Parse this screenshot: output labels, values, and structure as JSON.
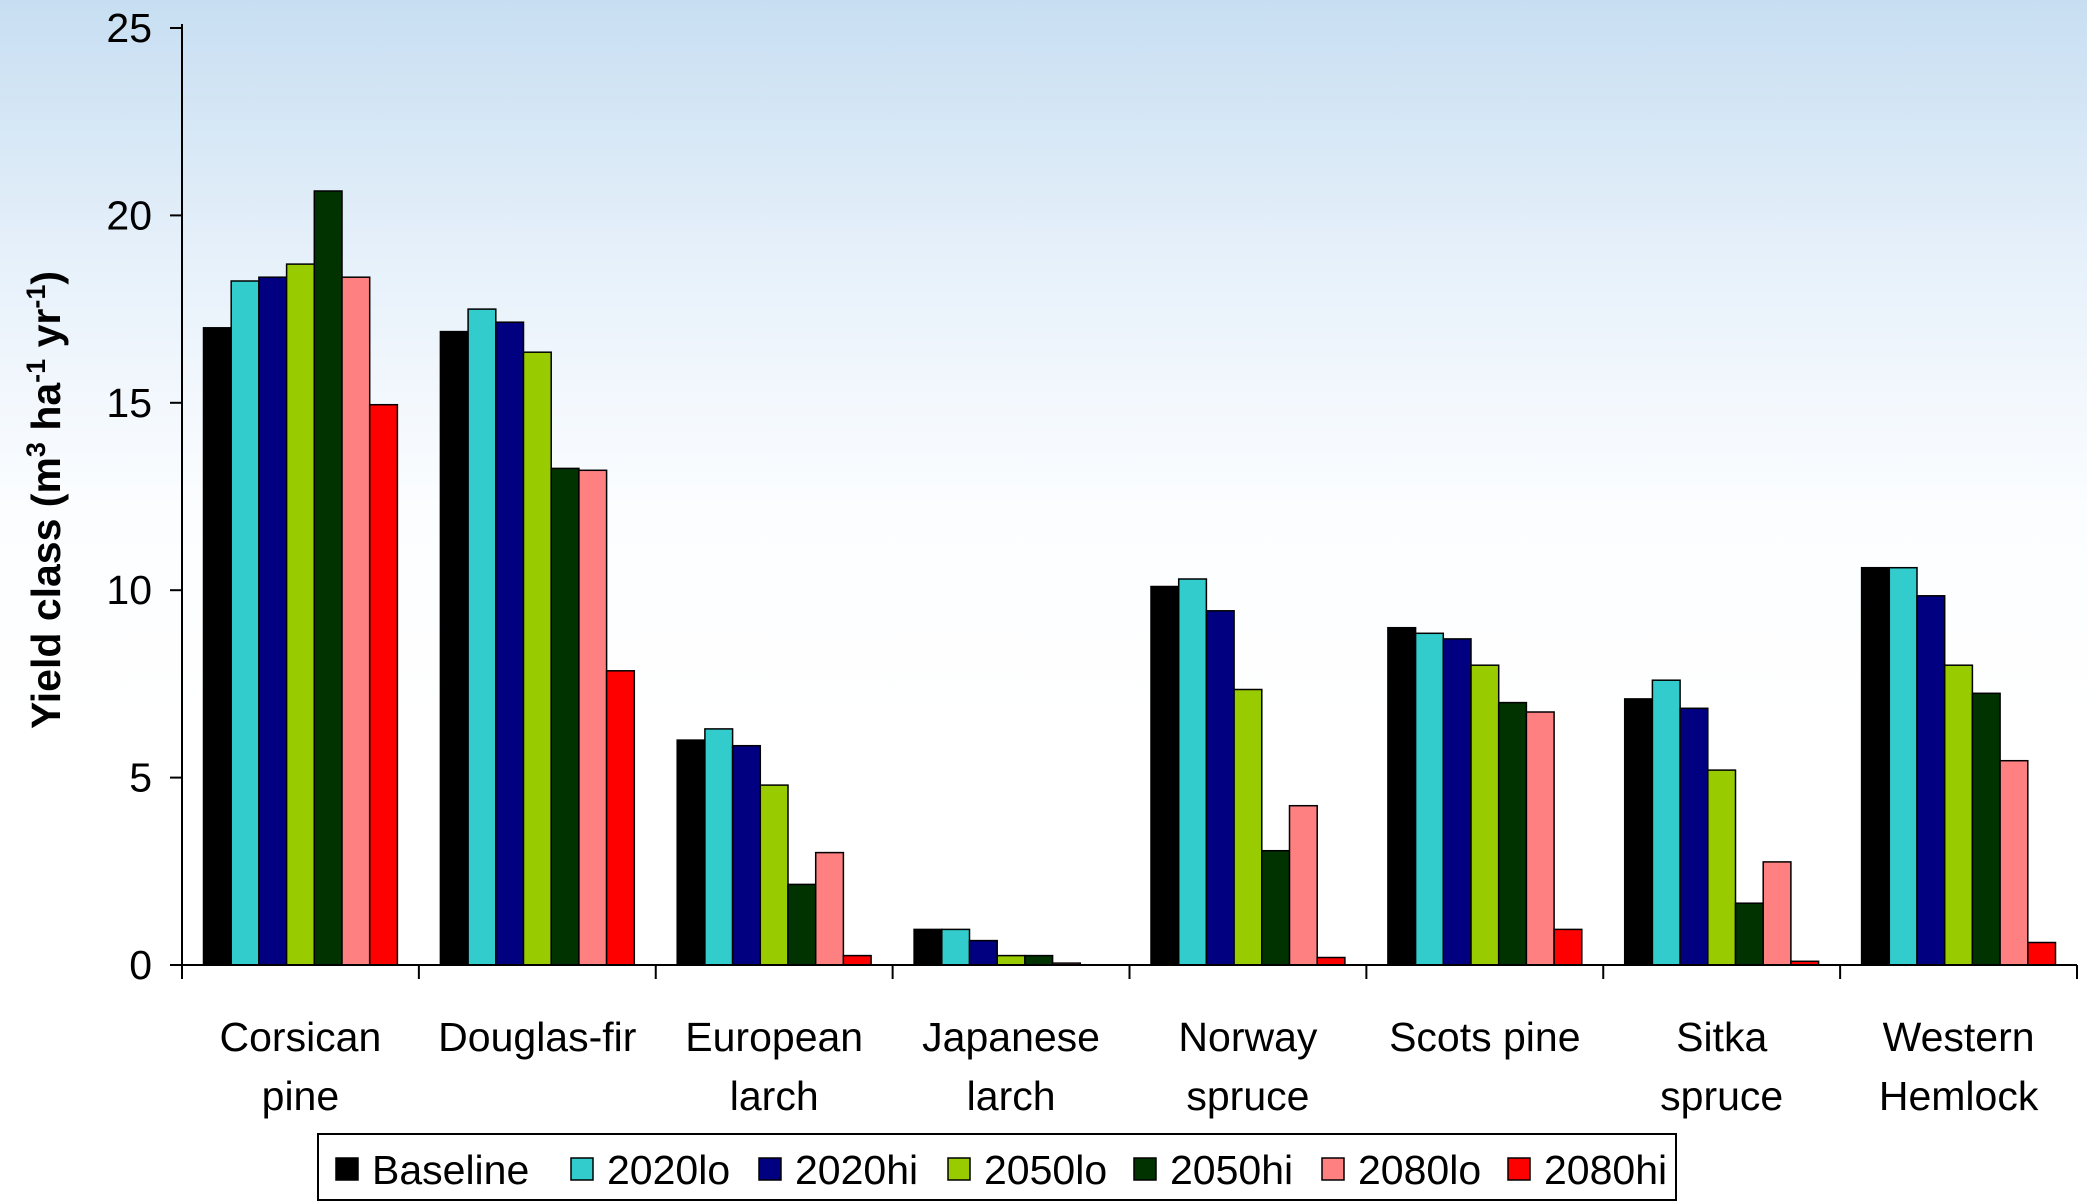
{
  "chart_data": {
    "type": "bar",
    "title": "",
    "xlabel": "",
    "ylabel": {
      "prefix": "Yield class (m",
      "sup1": "3",
      "mid1": " ha",
      "sup2": "-1",
      "mid2": " yr",
      "sup3": "-1",
      "suffix": ")"
    },
    "ylim": [
      0,
      25
    ],
    "yticks": [
      0,
      5,
      10,
      15,
      20,
      25
    ],
    "grid": false,
    "legend_position": "bottom",
    "categories": [
      [
        "Corsican",
        "pine"
      ],
      [
        "Douglas-fir"
      ],
      [
        "European",
        "larch"
      ],
      [
        "Japanese",
        "larch"
      ],
      [
        "Norway",
        "spruce"
      ],
      [
        "Scots pine"
      ],
      [
        "Sitka",
        "spruce"
      ],
      [
        "Western",
        "Hemlock"
      ]
    ],
    "series": [
      {
        "name": "Baseline",
        "color": "#000000",
        "values": [
          17.0,
          16.9,
          6.0,
          0.95,
          10.1,
          9.0,
          7.1,
          10.6
        ]
      },
      {
        "name": "2020lo",
        "color": "#33cccc",
        "values": [
          18.25,
          17.5,
          6.3,
          0.95,
          10.3,
          8.85,
          7.6,
          10.6
        ]
      },
      {
        "name": "2020hi",
        "color": "#000080",
        "values": [
          18.35,
          17.15,
          5.85,
          0.65,
          9.45,
          8.7,
          6.85,
          9.85
        ]
      },
      {
        "name": "2050lo",
        "color": "#99cc00",
        "values": [
          18.7,
          16.35,
          4.8,
          0.25,
          7.35,
          8.0,
          5.2,
          8.0
        ]
      },
      {
        "name": "2050hi",
        "color": "#003300",
        "values": [
          20.65,
          13.25,
          2.15,
          0.25,
          3.05,
          7.0,
          1.65,
          7.25
        ]
      },
      {
        "name": "2080lo",
        "color": "#ff8080",
        "values": [
          18.35,
          13.2,
          3.0,
          0.05,
          4.25,
          6.75,
          2.75,
          5.45
        ]
      },
      {
        "name": "2080hi",
        "color": "#ff0000",
        "values": [
          14.95,
          7.85,
          0.25,
          0.0,
          0.2,
          0.95,
          0.1,
          0.6
        ]
      }
    ]
  }
}
